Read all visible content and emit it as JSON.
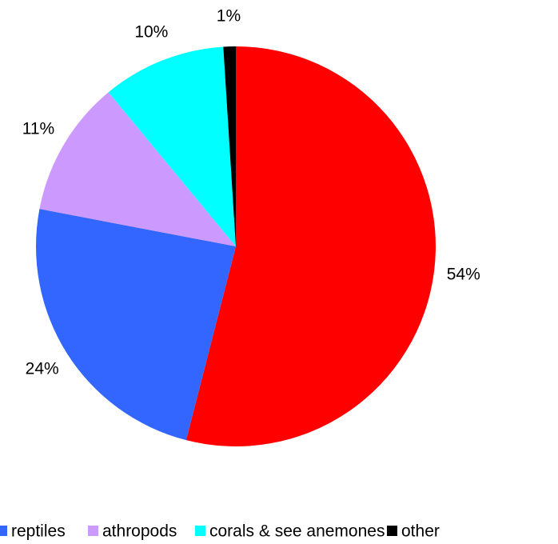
{
  "chart_data": {
    "type": "pie",
    "categories": [
      null,
      "reptiles",
      "athropods",
      "corals & see anemones",
      "other"
    ],
    "values": [
      54,
      24,
      11,
      10,
      1
    ],
    "value_labels": [
      "54%",
      "24%",
      "11%",
      "10%",
      "1%"
    ],
    "colors": [
      "#ff0000",
      "#3366ff",
      "#cc99ff",
      "#00ffff",
      "#000000"
    ],
    "legend": "bottom"
  }
}
